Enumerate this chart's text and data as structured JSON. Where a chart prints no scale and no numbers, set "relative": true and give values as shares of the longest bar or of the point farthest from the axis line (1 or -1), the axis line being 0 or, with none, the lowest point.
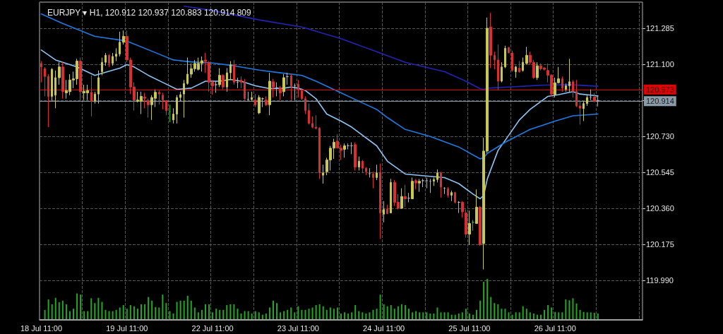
{
  "chart_data": [
    {
      "type": "candlestick",
      "title": "EURJPY ▾ H1, 120.912 120.937 120.883 120.914 809",
      "categories": [
        "18 Jul 11:00",
        null,
        null,
        null,
        null,
        null,
        null,
        null,
        null,
        null,
        null,
        null,
        null,
        null,
        null,
        null,
        null,
        null,
        null,
        null,
        null,
        null,
        null,
        null,
        "19 Jul 11:00",
        null,
        null,
        null,
        null,
        null,
        null,
        null,
        null,
        null,
        null,
        null,
        null,
        null,
        null,
        null,
        null,
        null,
        null,
        null,
        null,
        null,
        null,
        null,
        "22 Jul 11:00",
        null,
        null,
        null,
        null,
        null,
        null,
        null,
        null,
        null,
        null,
        null,
        null,
        null,
        null,
        null,
        null,
        null,
        null,
        null,
        null,
        null,
        null,
        null,
        "23 Jul 11:00",
        null,
        null,
        null,
        null,
        null,
        null,
        null,
        null,
        null,
        null,
        null,
        null,
        null,
        null,
        null,
        null,
        null,
        null,
        null,
        null,
        null,
        null,
        null,
        "24 Jul 11:00",
        null,
        null,
        null,
        null,
        null,
        null,
        null,
        null,
        null,
        null,
        null,
        null,
        null,
        null,
        null,
        null,
        null,
        null,
        null,
        null,
        null,
        null,
        null,
        "25 Jul 11:00",
        null,
        null,
        null,
        null,
        null,
        null,
        null,
        null,
        null,
        null,
        null,
        null,
        null,
        null,
        null,
        null,
        null,
        null,
        null,
        null,
        null,
        null,
        null,
        "26 Jul 11:00",
        null,
        null,
        null,
        null,
        null,
        null,
        null,
        null,
        null,
        null,
        null,
        null,
        null,
        null,
        null,
        null,
        null,
        null,
        null,
        null,
        null,
        null,
        null,
        null
      ],
      "ohlc": [
        [
          121.104,
          121.116,
          121.007,
          121.086
        ],
        [
          121.077,
          121.086,
          120.935,
          121.037
        ],
        [
          121.037,
          121.049,
          120.777,
          120.935
        ],
        [
          120.935,
          121.08,
          120.91,
          121.074
        ],
        [
          120.941,
          121.068,
          120.874,
          121.031
        ],
        [
          121.031,
          121.11,
          120.995,
          121.086
        ],
        [
          121.086,
          121.11,
          120.923,
          120.959
        ],
        [
          120.953,
          121.019,
          120.923,
          120.965
        ],
        [
          120.959,
          121.049,
          120.941,
          121.019
        ],
        [
          121.019,
          121.062,
          120.977,
          121.025
        ],
        [
          121.025,
          121.128,
          120.995,
          121.116
        ],
        [
          121.116,
          121.134,
          120.91,
          120.959
        ],
        [
          120.953,
          120.995,
          120.916,
          120.961
        ],
        [
          120.953,
          120.995,
          120.916,
          120.965
        ],
        [
          120.956,
          121.043,
          120.832,
          120.91
        ],
        [
          120.91,
          120.959,
          120.898,
          120.947
        ],
        [
          120.947,
          121.068,
          120.898,
          121.031
        ],
        [
          121.062,
          121.134,
          121.043,
          121.11
        ],
        [
          121.11,
          121.158,
          121.092,
          121.146
        ],
        [
          121.146,
          121.152,
          121.086,
          121.104
        ],
        [
          121.104,
          121.158,
          121.092,
          121.14
        ],
        [
          121.14,
          121.182,
          121.116,
          121.152
        ],
        [
          121.152,
          121.267,
          121.14,
          121.213
        ],
        [
          121.213,
          121.273,
          121.201,
          121.243
        ],
        [
          121.243,
          121.273,
          121.11,
          121.122
        ],
        [
          121.122,
          121.134,
          120.947,
          120.983
        ],
        [
          120.983,
          121.007,
          120.862,
          120.916
        ],
        [
          120.91,
          120.959,
          120.904,
          120.916
        ],
        [
          120.91,
          120.959,
          120.844,
          120.935
        ],
        [
          120.931,
          120.953,
          120.874,
          120.925
        ],
        [
          120.913,
          120.923,
          120.826,
          120.892
        ],
        [
          120.892,
          120.941,
          120.814,
          120.929
        ],
        [
          120.925,
          120.971,
          120.88,
          120.956
        ],
        [
          120.956,
          120.965,
          120.892,
          120.947
        ],
        [
          120.941,
          120.953,
          120.868,
          120.916
        ],
        [
          120.913,
          120.916,
          120.838,
          120.862
        ],
        [
          120.856,
          120.892,
          120.802,
          120.856
        ],
        [
          120.814,
          120.874,
          120.796,
          120.844
        ],
        [
          120.844,
          120.941,
          120.796,
          120.929
        ],
        [
          120.929,
          120.959,
          120.91,
          120.944
        ],
        [
          120.947,
          121.019,
          120.826,
          121.001
        ],
        [
          121.001,
          121.134,
          120.995,
          121.049
        ],
        [
          121.049,
          121.104,
          121.031,
          121.077
        ],
        [
          121.077,
          121.122,
          121.062,
          121.104
        ],
        [
          121.074,
          121.134,
          121.068,
          121.104
        ],
        [
          121.104,
          121.14,
          121.062,
          121.118
        ],
        [
          121.122,
          121.158,
          121.056,
          121.114
        ],
        [
          121.11,
          121.116,
          120.959,
          121.007
        ],
        [
          121.007,
          121.019,
          120.944,
          120.989
        ],
        [
          120.995,
          121.013,
          120.953,
          120.995
        ],
        [
          120.995,
          121.08,
          120.983,
          121.043
        ],
        [
          121.043,
          121.049,
          120.971,
          120.983
        ],
        [
          120.983,
          121.08,
          120.959,
          121.056
        ],
        [
          121.056,
          121.116,
          121.019,
          121.098
        ],
        [
          121.098,
          121.122,
          120.995,
          121.007
        ],
        [
          121.007,
          121.031,
          120.977,
          121.007
        ],
        [
          121.019,
          121.037,
          120.977,
          121.007
        ],
        [
          121.007,
          121.025,
          120.916,
          120.923
        ],
        [
          120.919,
          120.959,
          120.913,
          120.919
        ],
        [
          120.919,
          120.959,
          120.913,
          120.929
        ],
        [
          120.916,
          120.947,
          120.88,
          120.892
        ],
        [
          120.85,
          120.941,
          120.844,
          120.929
        ],
        [
          120.923,
          120.929,
          120.88,
          120.923
        ],
        [
          120.916,
          120.935,
          120.886,
          120.892
        ],
        [
          120.892,
          121.056,
          120.838,
          121.013
        ],
        [
          121.01,
          121.025,
          120.929,
          120.983
        ],
        [
          120.979,
          121.007,
          120.935,
          120.979
        ],
        [
          120.977,
          120.989,
          120.916,
          120.953
        ],
        [
          120.959,
          121.049,
          120.935,
          121.031
        ],
        [
          121.036,
          121.056,
          120.995,
          121.036
        ],
        [
          121.041,
          121.049,
          120.916,
          120.989
        ],
        [
          120.989,
          121.001,
          120.916,
          120.989
        ],
        [
          120.997,
          121.019,
          120.929,
          120.971
        ],
        [
          120.965,
          120.977,
          120.916,
          120.923
        ],
        [
          120.923,
          120.935,
          120.844,
          120.862
        ],
        [
          120.862,
          120.898,
          120.79,
          120.796
        ],
        [
          120.796,
          120.832,
          120.771,
          120.777
        ],
        [
          120.777,
          120.838,
          120.765,
          120.771
        ],
        [
          120.771,
          120.777,
          120.511,
          120.542
        ],
        [
          120.53,
          120.584,
          120.487,
          120.542
        ],
        [
          120.548,
          120.62,
          120.53,
          120.608
        ],
        [
          120.608,
          120.681,
          120.554,
          120.669
        ],
        [
          120.669,
          120.717,
          120.614,
          120.699
        ],
        [
          120.705,
          120.741,
          120.669,
          120.669
        ],
        [
          120.669,
          120.687,
          120.608,
          120.657
        ],
        [
          120.663,
          120.693,
          120.62,
          120.681
        ],
        [
          120.681,
          120.693,
          120.663,
          120.681
        ],
        [
          120.681,
          120.699,
          120.638,
          120.681
        ],
        [
          120.687,
          120.699,
          120.554,
          120.572
        ],
        [
          120.572,
          120.626,
          120.554,
          120.602
        ],
        [
          120.602,
          120.608,
          120.542,
          120.566
        ],
        [
          120.566,
          120.572,
          120.53,
          120.548
        ],
        [
          120.538,
          120.566,
          120.518,
          120.538
        ],
        [
          120.536,
          120.548,
          120.463,
          120.518
        ],
        [
          120.518,
          120.584,
          120.505,
          120.542
        ],
        [
          120.542,
          120.59,
          120.203,
          120.336
        ],
        [
          120.33,
          120.397,
          120.288,
          120.354
        ],
        [
          120.357,
          120.378,
          120.33,
          120.333
        ],
        [
          120.336,
          120.511,
          120.336,
          120.493
        ],
        [
          120.493,
          120.505,
          120.372,
          120.391
        ],
        [
          120.391,
          120.433,
          120.354,
          120.36
        ],
        [
          120.36,
          120.463,
          120.36,
          120.421
        ],
        [
          120.421,
          120.481,
          120.366,
          120.409
        ],
        [
          120.412,
          120.439,
          120.391,
          120.412
        ],
        [
          120.409,
          120.518,
          120.409,
          120.499
        ],
        [
          120.502,
          120.511,
          120.457,
          120.49
        ],
        [
          120.49,
          120.511,
          120.445,
          120.499
        ],
        [
          120.502,
          120.511,
          120.469,
          120.502
        ],
        [
          120.502,
          120.518,
          120.463,
          120.502
        ],
        [
          120.499,
          120.511,
          120.439,
          120.499
        ],
        [
          120.499,
          120.518,
          120.475,
          120.508
        ],
        [
          120.508,
          120.56,
          120.493,
          120.542
        ],
        [
          120.542,
          120.548,
          120.415,
          120.469
        ],
        [
          120.463,
          120.469,
          120.433,
          120.463
        ],
        [
          120.461,
          120.469,
          120.415,
          120.427
        ],
        [
          120.427,
          120.451,
          120.397,
          120.441
        ],
        [
          120.441,
          120.445,
          120.385,
          120.391
        ],
        [
          120.391,
          120.397,
          120.336,
          120.391
        ],
        [
          120.391,
          120.397,
          120.312,
          120.342
        ],
        [
          120.336,
          120.354,
          120.209,
          120.227
        ],
        [
          120.227,
          120.348,
          120.173,
          120.282
        ],
        [
          120.288,
          120.3,
          120.245,
          120.288
        ],
        [
          120.282,
          120.457,
          120.282,
          120.366
        ],
        [
          120.366,
          120.372,
          120.167,
          120.173
        ],
        [
          120.179,
          120.723,
          120.046,
          120.654
        ],
        [
          120.654,
          121.34,
          120.644,
          121.285
        ],
        [
          121.291,
          121.364,
          121.08,
          121.146
        ],
        [
          121.146,
          121.164,
          121.074,
          121.122
        ],
        [
          121.122,
          121.201,
          120.965,
          121.013
        ],
        [
          121.013,
          121.11,
          121.007,
          121.086
        ],
        [
          121.086,
          121.195,
          121.08,
          121.182
        ],
        [
          121.186,
          121.189,
          121.158,
          121.158
        ],
        [
          121.158,
          121.17,
          121.062,
          121.068
        ],
        [
          121.062,
          121.092,
          121.031,
          121.086
        ],
        [
          121.08,
          121.116,
          121.056,
          121.062
        ],
        [
          121.068,
          121.134,
          121.062,
          121.11
        ],
        [
          121.104,
          121.189,
          121.098,
          121.146
        ],
        [
          121.146,
          121.164,
          121.098,
          121.11
        ],
        [
          121.11,
          121.122,
          121.025,
          121.031
        ],
        [
          121.031,
          121.11,
          121.019,
          121.092
        ],
        [
          121.092,
          121.104,
          121.068,
          121.077
        ],
        [
          121.08,
          121.086,
          121.068,
          121.074
        ],
        [
          121.068,
          121.104,
          121.007,
          121.043
        ],
        [
          121.043,
          121.049,
          120.935,
          120.947
        ],
        [
          120.944,
          121.031,
          120.929,
          121.005
        ],
        [
          121.005,
          121.086,
          121.001,
          121.025
        ],
        [
          121.025,
          121.037,
          120.959,
          120.977
        ],
        [
          120.971,
          121.001,
          120.959,
          120.989
        ],
        [
          120.989,
          121.128,
          120.959,
          121.01
        ],
        [
          121.01,
          121.019,
          120.929,
          120.961
        ],
        [
          120.961,
          121.019,
          120.88,
          120.886
        ],
        [
          120.886,
          120.91,
          120.79,
          120.874
        ],
        [
          120.872,
          120.91,
          120.808,
          120.898
        ],
        [
          120.898,
          120.941,
          120.886,
          120.929
        ],
        [
          120.931,
          120.971,
          120.916,
          120.931
        ],
        [
          120.931,
          120.953,
          120.904,
          120.91
        ],
        [
          120.912,
          120.937,
          120.883,
          120.914
        ],
        null,
        null,
        null,
        null,
        null,
        null,
        null,
        null,
        null,
        null,
        null,
        null
      ],
      "colors": [
        "#d83030",
        "#d83030",
        "#d83030",
        "#c8c850",
        "#c8c850",
        "#c8c850",
        "#d83030",
        "#c8c850",
        "#c8c850",
        "#c8c850",
        "#c8c850",
        "#d83030",
        "#c8c850",
        "#c8c850",
        "#d83030",
        "#c8c850",
        "#c8c850",
        "#c8c850",
        "#c8c850",
        "#d83030",
        "#c8c850",
        "#c8c850",
        "#c8c850",
        "#c8c850",
        "#d83030",
        "#d83030",
        "#d83030",
        "#c8c850",
        "#c8c850",
        "#d83030",
        "#d83030",
        "#c8c850",
        "#c8c850",
        "#d83030",
        "#d83030",
        "#d83030",
        "#22c022",
        "#c8c850",
        "#c8c850",
        "#c8c850",
        "#c8c850",
        "#c8c850",
        "#c8c850",
        "#c8c850",
        "#c8c850",
        "#c8c850",
        "#d83030",
        "#d83030",
        "#d83030",
        "#b4b4b4",
        "#c8c850",
        "#d83030",
        "#c8c850",
        "#c8c850",
        "#d83030",
        "#b4b4b4",
        "#d83030",
        "#d83030",
        "#b4b4b4",
        "#c8c850",
        "#d83030",
        "#c8c850",
        "#b4b4b4",
        "#d83030",
        "#c8c850",
        "#d83030",
        "#b4b4b4",
        "#d83030",
        "#c8c850",
        "#b4b4b4",
        "#d83030",
        "#b4b4b4",
        "#d83030",
        "#d83030",
        "#d83030",
        "#d83030",
        "#d83030",
        "#d83030",
        "#d83030",
        "#c8c850",
        "#c8c850",
        "#c8c850",
        "#c8c850",
        "#d83030",
        "#d83030",
        "#c8c850",
        "#b4b4b4",
        "#b4b4b4",
        "#d83030",
        "#c8c850",
        "#d83030",
        "#d83030",
        "#b4b4b4",
        "#d83030",
        "#c8c850",
        "#d83030",
        "#c8c850",
        "#d83030",
        "#c8c850",
        "#d83030",
        "#d83030",
        "#c8c850",
        "#d83030",
        "#b4b4b4",
        "#c8c850",
        "#d83030",
        "#c8c850",
        "#b4b4b4",
        "#b4b4b4",
        "#b4b4b4",
        "#c8c850",
        "#c8c850",
        "#d83030",
        "#b4b4b4",
        "#d83030",
        "#c8c850",
        "#d83030",
        "#b4b4b4",
        "#d83030",
        "#d83030",
        "#c8c850",
        "#22c022",
        "#c8c850",
        "#d83030",
        "#c8c850",
        "#c8c850",
        "#d83030",
        "#d83030",
        "#d83030",
        "#c8c850",
        "#c8c850",
        "#d83030",
        "#d83030",
        "#c8c850",
        "#d83030",
        "#c8c850",
        "#c8c850",
        "#d83030",
        "#d83030",
        "#c8c850",
        "#d83030",
        "#d83030",
        "#d83030",
        "#d83030",
        "#c8c850",
        "#c8c850",
        "#d83030",
        "#c8c850",
        "#c8c850",
        "#d83030",
        "#d83030",
        "#d83030",
        "#c8c850",
        "#c8c850",
        "#b4b4b4",
        "#d83030",
        "#b4b4b4",
        null,
        null,
        null,
        null,
        null,
        null,
        null,
        null,
        null,
        null,
        null,
        null
      ],
      "series": [
        {
          "type": "line",
          "color": "#8cc4f4",
          "values": [
            121.173,
            null,
            null,
            null,
            121.122,
            null,
            null,
            null,
            null,
            null,
            121.086,
            null,
            null,
            null,
            null,
            121.043,
            null,
            null,
            null,
            null,
            null,
            null,
            121.08,
            null,
            121.098,
            null,
            121.086,
            null,
            null,
            null,
            121.043,
            null,
            null,
            null,
            121.007,
            null,
            null,
            null,
            120.971,
            null,
            null,
            null,
            120.977,
            null,
            null,
            null,
            121.013,
            null,
            null,
            null,
            121.013,
            null,
            null,
            121.022,
            null,
            null,
            121.013,
            null,
            null,
            null,
            120.989,
            null,
            null,
            null,
            120.975,
            null,
            null,
            null,
            120.977,
            null,
            120.983,
            null,
            120.977,
            null,
            120.965,
            null,
            null,
            120.923,
            null,
            null,
            120.844,
            null,
            null,
            null,
            120.808,
            null,
            null,
            120.777,
            null,
            null,
            null,
            null,
            null,
            null,
            120.681,
            null,
            null,
            120.602,
            null,
            null,
            null,
            null,
            120.536,
            null,
            null,
            null,
            null,
            null,
            null,
            120.524,
            null,
            null,
            null,
            120.518,
            null,
            null,
            null,
            120.487,
            null,
            null,
            null,
            120.433,
            null,
            120.409,
            120.427,
            120.511,
            120.56,
            null,
            120.657,
            null,
            null,
            120.735,
            null,
            null,
            120.814,
            null,
            null,
            120.868,
            null,
            null,
            null,
            null,
            120.935,
            null,
            null,
            120.944,
            null,
            null,
            null,
            120.959,
            null,
            120.947,
            null,
            null,
            120.941,
            null,
            120.937,
            null,
            null,
            null,
            null,
            null,
            null,
            null,
            null,
            null,
            null,
            null,
            null
          ]
        },
        {
          "type": "line",
          "color": "#1e7ae0",
          "values": [
            121.358,
            null,
            null,
            null,
            null,
            null,
            121.309,
            null,
            null,
            null,
            null,
            null,
            null,
            null,
            null,
            121.243,
            null,
            null,
            null,
            null,
            null,
            null,
            null,
            null,
            121.219,
            null,
            null,
            null,
            null,
            null,
            null,
            null,
            null,
            121.152,
            null,
            null,
            null,
            121.122,
            null,
            null,
            null,
            null,
            121.112,
            null,
            null,
            null,
            null,
            null,
            121.106,
            null,
            null,
            null,
            null,
            null,
            121.092,
            null,
            null,
            null,
            null,
            null,
            null,
            121.07,
            null,
            null,
            null,
            null,
            null,
            121.056,
            null,
            null,
            null,
            null,
            null,
            121.043,
            null,
            null,
            null,
            121.013,
            null,
            null,
            null,
            null,
            null,
            null,
            120.953,
            null,
            null,
            null,
            null,
            120.91,
            null,
            null,
            null,
            null,
            120.868,
            null,
            null,
            120.826,
            null,
            null,
            null,
            null,
            120.765,
            null,
            null,
            null,
            null,
            null,
            null,
            120.729,
            null,
            null,
            null,
            null,
            null,
            null,
            null,
            120.675,
            null,
            null,
            null,
            null,
            null,
            120.614,
            120.62,
            120.642,
            null,
            null,
            null,
            null,
            120.699,
            null,
            null,
            null,
            null,
            null,
            null,
            120.765,
            null,
            null,
            null,
            null,
            null,
            null,
            120.808,
            null,
            null,
            null,
            null,
            120.835,
            null,
            null,
            null,
            null,
            null,
            null,
            120.844,
            null,
            null,
            null,
            null,
            null,
            null,
            null,
            null,
            null,
            null,
            null,
            null
          ]
        },
        {
          "type": "line",
          "color": "#2424b4",
          "values": [
            null,
            null,
            null,
            null,
            null,
            null,
            null,
            null,
            null,
            null,
            null,
            null,
            null,
            null,
            null,
            null,
            null,
            null,
            null,
            null,
            null,
            null,
            null,
            null,
            null,
            null,
            null,
            null,
            null,
            null,
            null,
            null,
            null,
            null,
            null,
            null,
            null,
            null,
            null,
            null,
            121.398,
            null,
            null,
            null,
            null,
            null,
            null,
            null,
            121.376,
            null,
            null,
            null,
            null,
            null,
            null,
            null,
            null,
            null,
            null,
            null,
            null,
            121.328,
            null,
            null,
            null,
            null,
            null,
            null,
            null,
            null,
            null,
            null,
            null,
            121.291,
            null,
            null,
            null,
            null,
            null,
            null,
            null,
            null,
            null,
            null,
            121.231,
            null,
            null,
            null,
            null,
            null,
            null,
            null,
            null,
            null,
            121.164,
            null,
            null,
            null,
            null,
            null,
            null,
            null,
            121.11,
            null,
            null,
            null,
            null,
            null,
            null,
            null,
            null,
            null,
            null,
            121.062,
            null,
            null,
            null,
            null,
            null,
            121.013,
            null,
            null,
            null,
            120.974,
            120.971,
            120.977,
            null,
            null,
            null,
            null,
            null,
            120.983,
            null,
            null,
            null,
            null,
            null,
            null,
            null,
            null,
            null,
            120.993,
            null,
            null,
            null,
            null,
            null,
            null,
            120.995,
            null,
            null,
            null,
            null,
            null,
            null,
            null,
            120.987,
            null,
            null,
            null,
            null,
            null,
            null,
            null,
            null,
            null,
            null,
            null,
            null
          ]
        }
      ],
      "ylim": [
        119.787,
        121.419
      ],
      "yticks": [
        {
          "value": 119.99,
          "label": "119.990"
        },
        {
          "value": 120.175,
          "label": "120.175"
        },
        {
          "value": 120.36,
          "label": "120.360"
        },
        {
          "value": 120.545,
          "label": "120.545"
        },
        {
          "value": 120.73,
          "label": "120.730"
        },
        {
          "value": 120.915,
          "label": null
        },
        {
          "value": 121.1,
          "label": "121.100"
        },
        {
          "value": 121.285,
          "label": "121.285"
        }
      ],
      "ref_lines": [
        {
          "axis": "y",
          "value": 120.973,
          "label": "120.973",
          "color": "#e00000"
        },
        {
          "axis": "y",
          "value": 120.914,
          "label": "120.914",
          "color": "#8a9aa8"
        }
      ],
      "grid": true,
      "marker": "none"
    },
    {
      "type": "bar",
      "relative": true,
      "color": "#22a822",
      "categories": [
        null,
        null,
        null,
        null,
        null,
        null,
        null,
        null,
        null,
        null,
        null,
        null,
        null,
        null,
        null,
        null,
        null,
        null,
        null,
        null,
        null,
        null,
        null,
        null,
        null,
        null,
        null,
        null,
        null,
        null,
        null,
        null,
        null,
        null,
        null,
        null,
        null,
        null,
        null,
        null,
        null,
        null,
        null,
        null,
        null,
        null,
        null,
        null,
        null,
        null,
        null,
        null,
        null,
        null,
        null,
        null,
        null,
        null,
        null,
        null,
        null,
        null,
        null,
        null,
        null,
        null,
        null,
        null,
        null,
        null,
        null,
        null,
        null,
        null,
        null,
        null,
        null,
        null,
        null,
        null,
        null,
        null,
        null,
        null,
        null,
        null,
        null,
        null,
        null,
        null,
        null,
        null,
        null,
        null,
        null,
        null,
        null,
        null,
        null,
        null,
        null,
        null,
        null,
        null,
        null,
        null,
        null,
        null,
        null,
        null,
        null,
        null,
        null,
        null,
        null,
        null,
        null,
        null,
        null,
        null,
        null,
        null,
        null,
        null,
        null,
        null,
        null,
        null,
        null,
        null,
        null,
        null,
        null,
        null,
        null,
        null,
        null,
        null,
        null,
        null,
        null,
        null,
        null,
        null,
        null,
        null,
        null,
        null,
        null,
        null,
        null,
        null,
        null,
        null,
        null,
        null,
        null,
        null,
        null,
        null,
        null,
        null,
        null,
        null,
        null,
        null,
        null,
        null,
        null
      ],
      "values": [
        null,
        0.23,
        0.49,
        0.37,
        0.53,
        0.42,
        0.46,
        0.37,
        0.2,
        0.26,
        0.64,
        0.61,
        0.2,
        0.2,
        0.52,
        0.4,
        0.53,
        0.43,
        0.23,
        0.2,
        0.2,
        0.23,
        0.29,
        0.35,
        0.26,
        0.35,
        0.32,
        0.26,
        0.37,
        0.37,
        0.55,
        0.46,
        0.3,
        0.29,
        0.61,
        0.4,
        0.2,
        0.14,
        0.43,
        0.46,
        0.46,
        0.58,
        0.46,
        0.29,
        0.17,
        0.23,
        0.37,
        0.37,
        0.17,
        0.26,
        0.23,
        0.23,
        0.35,
        0.37,
        0.37,
        0.26,
        0.14,
        0.2,
        0.2,
        0.14,
        0.2,
        0.17,
        0.11,
        0.14,
        0.29,
        0.46,
        0.4,
        0.17,
        0.2,
        0.23,
        0.29,
        0.17,
        0.32,
        0.23,
        0.23,
        0.26,
        0.29,
        0.35,
        0.37,
        0.32,
        0.23,
        0.29,
        0.26,
        0.29,
        0.14,
        0.17,
        0.14,
        0.17,
        0.35,
        0.2,
        0.17,
        0.14,
        0.17,
        0.23,
        0.26,
        0.61,
        0.37,
        0.32,
        0.35,
        0.26,
        0.32,
        0.37,
        0.35,
        0.26,
        0.17,
        0.2,
        0.17,
        0.17,
        0.17,
        0.14,
        0.14,
        0.29,
        0.17,
        0.17,
        0.17,
        0.11,
        0.11,
        0.14,
        0.17,
        0.26,
        0.14,
        0.11,
        0.23,
        0.46,
        0.93,
        1,
        0.55,
        0.4,
        0.37,
        0.26,
        0.26,
        0.17,
        0.11,
        0.17,
        0.17,
        0.32,
        0.26,
        0.17,
        0.14,
        0.11,
        0.11,
        0.23,
        0.35,
        0.29,
        0.18,
        0.17,
        0.17,
        0.49,
        0.47,
        0.52,
        0.39,
        0.23,
        0.18,
        0.17,
        0.17,
        0.16,
        0.14,
        null,
        null,
        null,
        null,
        null,
        null,
        null,
        null,
        null,
        null,
        null,
        null
      ]
    }
  ]
}
